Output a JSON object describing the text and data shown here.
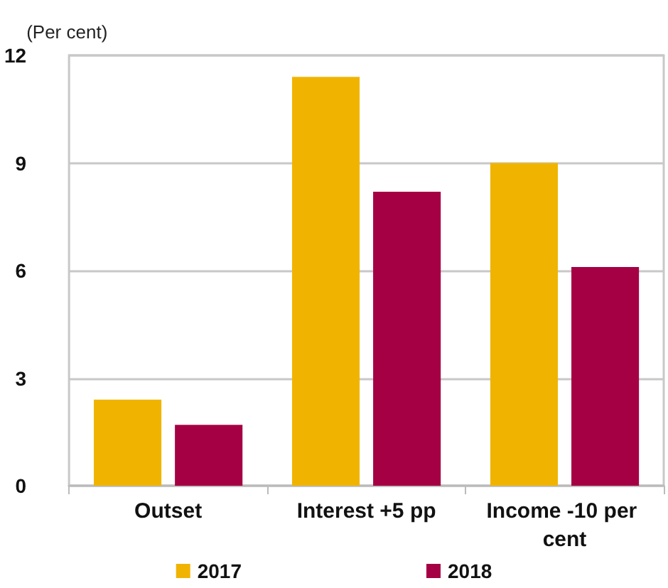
{
  "chart_data": {
    "type": "bar",
    "ylabel": "(Per cent)",
    "categories": [
      "Outset",
      "Interest +5 pp",
      "Income -10 per cent"
    ],
    "series": [
      {
        "name": "2017",
        "color": "#f0b400",
        "values": [
          2.4,
          11.4,
          9.0
        ]
      },
      {
        "name": "2018",
        "color": "#a50044",
        "values": [
          1.7,
          8.2,
          6.1
        ]
      }
    ],
    "ylim": [
      0,
      12
    ],
    "yticks": [
      0,
      3,
      6,
      9,
      12
    ],
    "grid": "y",
    "legend": "bottom"
  }
}
